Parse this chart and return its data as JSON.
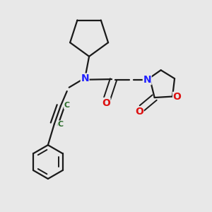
{
  "bg_color": "#e8e8e8",
  "bond_color": "#1a1a1a",
  "N_color": "#2020ff",
  "O_color": "#dd1111",
  "C_triple_color": "#2a6a2a",
  "line_width": 1.6,
  "fig_w": 3.0,
  "fig_h": 3.0,
  "dpi": 100,
  "xlim": [
    0,
    1
  ],
  "ylim": [
    0,
    1
  ]
}
